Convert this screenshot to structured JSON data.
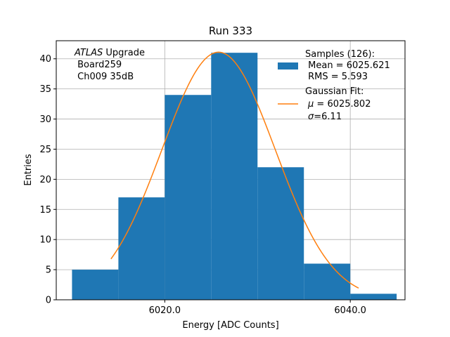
{
  "chart_data": {
    "type": "bar",
    "title": "Run 333",
    "xlabel": "Energy [ADC Counts]",
    "ylabel": "Entries",
    "xlim": [
      6008.3,
      6045.9
    ],
    "ylim": [
      0,
      43
    ],
    "x_ticks": [
      6020.0,
      6040.0
    ],
    "x_tick_labels": [
      "6020.0",
      "6040.0"
    ],
    "y_ticks": [
      0,
      5,
      10,
      15,
      20,
      25,
      30,
      35,
      40
    ],
    "y_tick_labels": [
      "0",
      "5",
      "10",
      "15",
      "20",
      "25",
      "30",
      "35",
      "40"
    ],
    "grid": true,
    "bins": [
      {
        "left": 6010.0,
        "right": 6015.0,
        "count": 5
      },
      {
        "left": 6015.0,
        "right": 6020.0,
        "count": 17
      },
      {
        "left": 6020.0,
        "right": 6025.0,
        "count": 34
      },
      {
        "left": 6025.0,
        "right": 6030.0,
        "count": 41
      },
      {
        "left": 6030.0,
        "right": 6035.0,
        "count": 22
      },
      {
        "left": 6035.0,
        "right": 6040.0,
        "count": 6
      },
      {
        "left": 6040.0,
        "right": 6045.0,
        "count": 1
      }
    ],
    "fit": {
      "type": "gaussian",
      "x_range": [
        6014.2,
        6040.9
      ],
      "peak": 41.1,
      "mu": 6025.802,
      "sigma": 6.11
    },
    "bar_color": "#1f77b4",
    "fit_color": "#ff7f0e",
    "legend_position": "top-right"
  },
  "annotation": {
    "italic": "ATLAS",
    "line1_rest": " Upgrade",
    "line2": " Board259",
    "line3": " Ch009 35dB"
  },
  "legend": {
    "samples_title": "Samples (126):",
    "samples_mean": " Mean = 6025.621",
    "samples_rms": " RMS = 5.593",
    "fit_title": "Gaussian Fit:",
    "fit_mu_symbol": "μ",
    "fit_mu_value": " = 6025.802",
    "fit_sigma_symbol": "σ",
    "fit_sigma_value": "=6.11"
  }
}
